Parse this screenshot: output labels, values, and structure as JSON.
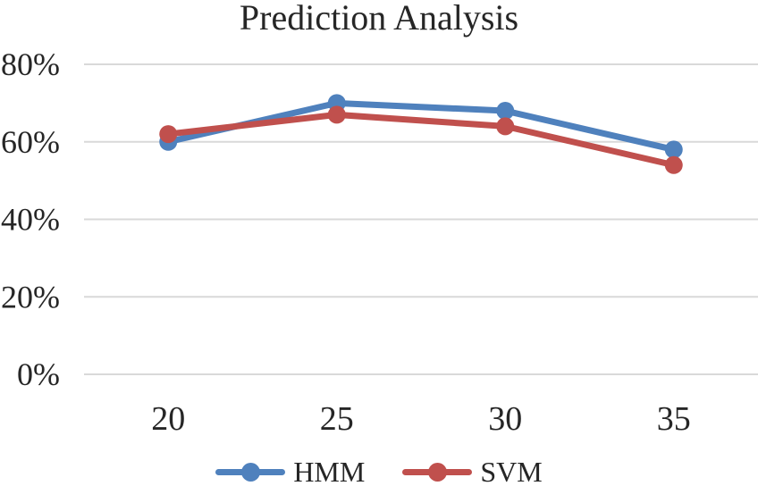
{
  "chart_data": {
    "type": "line",
    "title": "Prediction Analysis",
    "categories": [
      "20",
      "25",
      "30",
      "35"
    ],
    "series": [
      {
        "name": "HMM",
        "color": "#4F81BD",
        "values": [
          60,
          70,
          68,
          58
        ]
      },
      {
        "name": "SVM",
        "color": "#C0504D",
        "values": [
          62,
          67,
          64,
          54
        ]
      }
    ],
    "y_ticks": [
      {
        "label": "0%",
        "value": 0
      },
      {
        "label": "20%",
        "value": 20
      },
      {
        "label": "40%",
        "value": 40
      },
      {
        "label": "60%",
        "value": 60
      },
      {
        "label": "80%",
        "value": 80
      }
    ],
    "ylim": [
      0,
      80
    ],
    "xlabel": "",
    "ylabel": "",
    "grid": "horizontal",
    "legend_position": "bottom",
    "marker": "circle",
    "colors": {
      "gridline": "#D9D9D9",
      "text": "#262626",
      "background": "#FFFFFF"
    }
  }
}
